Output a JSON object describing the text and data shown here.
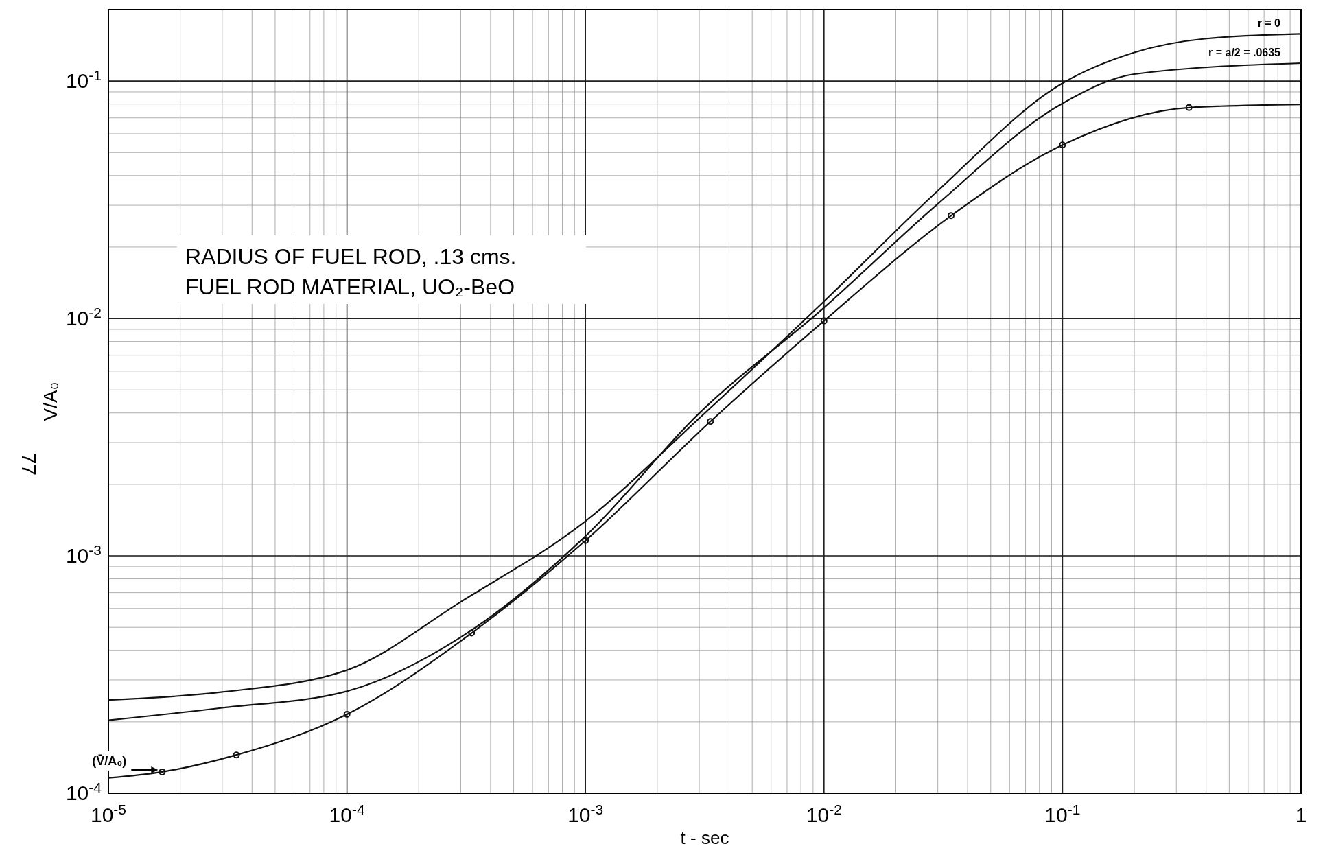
{
  "chart_data": {
    "type": "line",
    "xlabel": "t - sec",
    "ylabel": "V/A₀",
    "log": "xy",
    "grid": true,
    "line_style": "solid",
    "xlim": [
      1e-05,
      1
    ],
    "ylim": [
      0.0001,
      0.2
    ],
    "xticks": [
      {
        "value": 1e-05,
        "label": "10$^{-5}$"
      },
      {
        "value": 0.0001,
        "label": "10$^{-4}$"
      },
      {
        "value": 0.001,
        "label": "10$^{-3}$"
      },
      {
        "value": 0.01,
        "label": "10$^{-2}$"
      },
      {
        "value": 0.1,
        "label": "10$^{-1}$"
      },
      1
    ],
    "yticks": [
      {
        "value": 0.0001,
        "label": "10$^{-4}$"
      },
      {
        "value": 0.001,
        "label": "10$^{-3}$"
      },
      {
        "value": 0.01,
        "label": "10$^{-2}$"
      },
      {
        "value": 0.1,
        "label": "10$^{-1}$"
      }
    ],
    "series": [
      {
        "name": "r = 0",
        "color": "#111111",
        "marker": "none",
        "x": [
          1e-05,
          3e-05,
          0.0001,
          0.0003,
          0.001,
          0.003,
          0.01,
          0.03,
          0.1,
          0.2,
          0.4,
          1
        ],
        "values": [
          0.000247,
          0.000267,
          0.00033,
          0.00064,
          0.0014,
          0.0038,
          0.0118,
          0.0345,
          0.098,
          0.132,
          0.151,
          0.158
        ]
      },
      {
        "name": "r = a/2 = .0635",
        "color": "#111111",
        "marker": "none",
        "x": [
          1e-05,
          3e-05,
          0.0001,
          0.0003,
          0.001,
          0.003,
          0.01,
          0.03,
          0.1,
          0.2,
          1
        ],
        "values": [
          0.000203,
          0.000229,
          0.000269,
          0.000454,
          0.00121,
          0.00399,
          0.0111,
          0.0304,
          0.0805,
          0.107,
          0.119
        ]
      },
      {
        "color": "#111111",
        "marker": "none",
        "x": [
          1e-05,
          1.68e-05,
          3.44e-05,
          0.0001,
          0.000333,
          0.001,
          0.00334,
          0.01,
          0.0341,
          0.1,
          0.339,
          1
        ],
        "values": [
          0.000116,
          0.000123,
          0.000145,
          0.000215,
          0.000473,
          0.00116,
          0.00368,
          0.00977,
          0.0271,
          0.0538,
          0.0773,
          0.0798
        ]
      },
      {
        "type": "scatter",
        "color": "#111111",
        "marker": "circle",
        "x": [
          1.68e-05,
          3.44e-05,
          0.0001,
          0.000333,
          0.001,
          0.00334,
          0.01,
          0.0341,
          0.1,
          0.339
        ],
        "values": [
          0.000123,
          0.000145,
          0.000215,
          0.000473,
          0.00116,
          0.00368,
          0.00977,
          0.0271,
          0.0538,
          0.0773
        ]
      }
    ],
    "annotations": [
      "RADIUS OF FUEL ROD, .13 cms.",
      "FUEL ROD MATERIAL, UO₂-BeO",
      {
        "text": "(V̄/A₀)",
        "x": 1.68e-05,
        "y": 0.000123
      },
      "77"
    ]
  }
}
